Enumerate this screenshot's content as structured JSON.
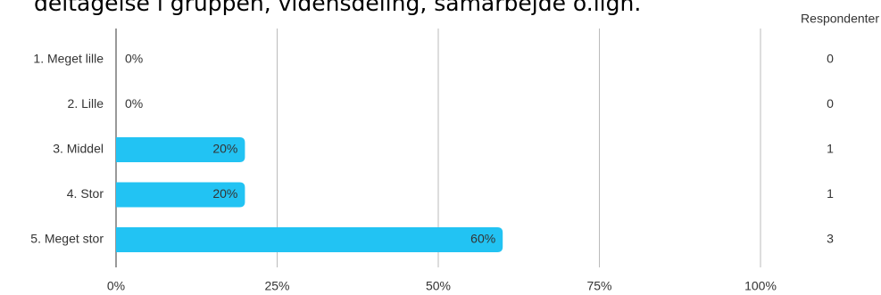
{
  "chart_data": {
    "type": "bar",
    "orientation": "horizontal",
    "title": "deltagelse i gruppen, vidensdeling, samarbejde o.lign.",
    "categories": [
      "1. Meget lille",
      "2. Lille",
      "3. Middel",
      "4. Stor",
      "5. Meget stor"
    ],
    "values": [
      0,
      0,
      20,
      20,
      60
    ],
    "value_labels": [
      "0%",
      "0%",
      "20%",
      "20%",
      "60%"
    ],
    "color": "#22c3f3",
    "xlim": [
      0,
      100
    ],
    "xticks": [
      {
        "value": 0,
        "label": "0%"
      },
      {
        "value": 25,
        "label": "25%"
      },
      {
        "value": 50,
        "label": "50%"
      },
      {
        "value": 75,
        "label": "75%"
      },
      {
        "value": 100,
        "label": "100%"
      }
    ],
    "grid": true,
    "respondents": {
      "title": "Respondenter",
      "values": [
        0,
        0,
        1,
        1,
        3
      ]
    }
  }
}
